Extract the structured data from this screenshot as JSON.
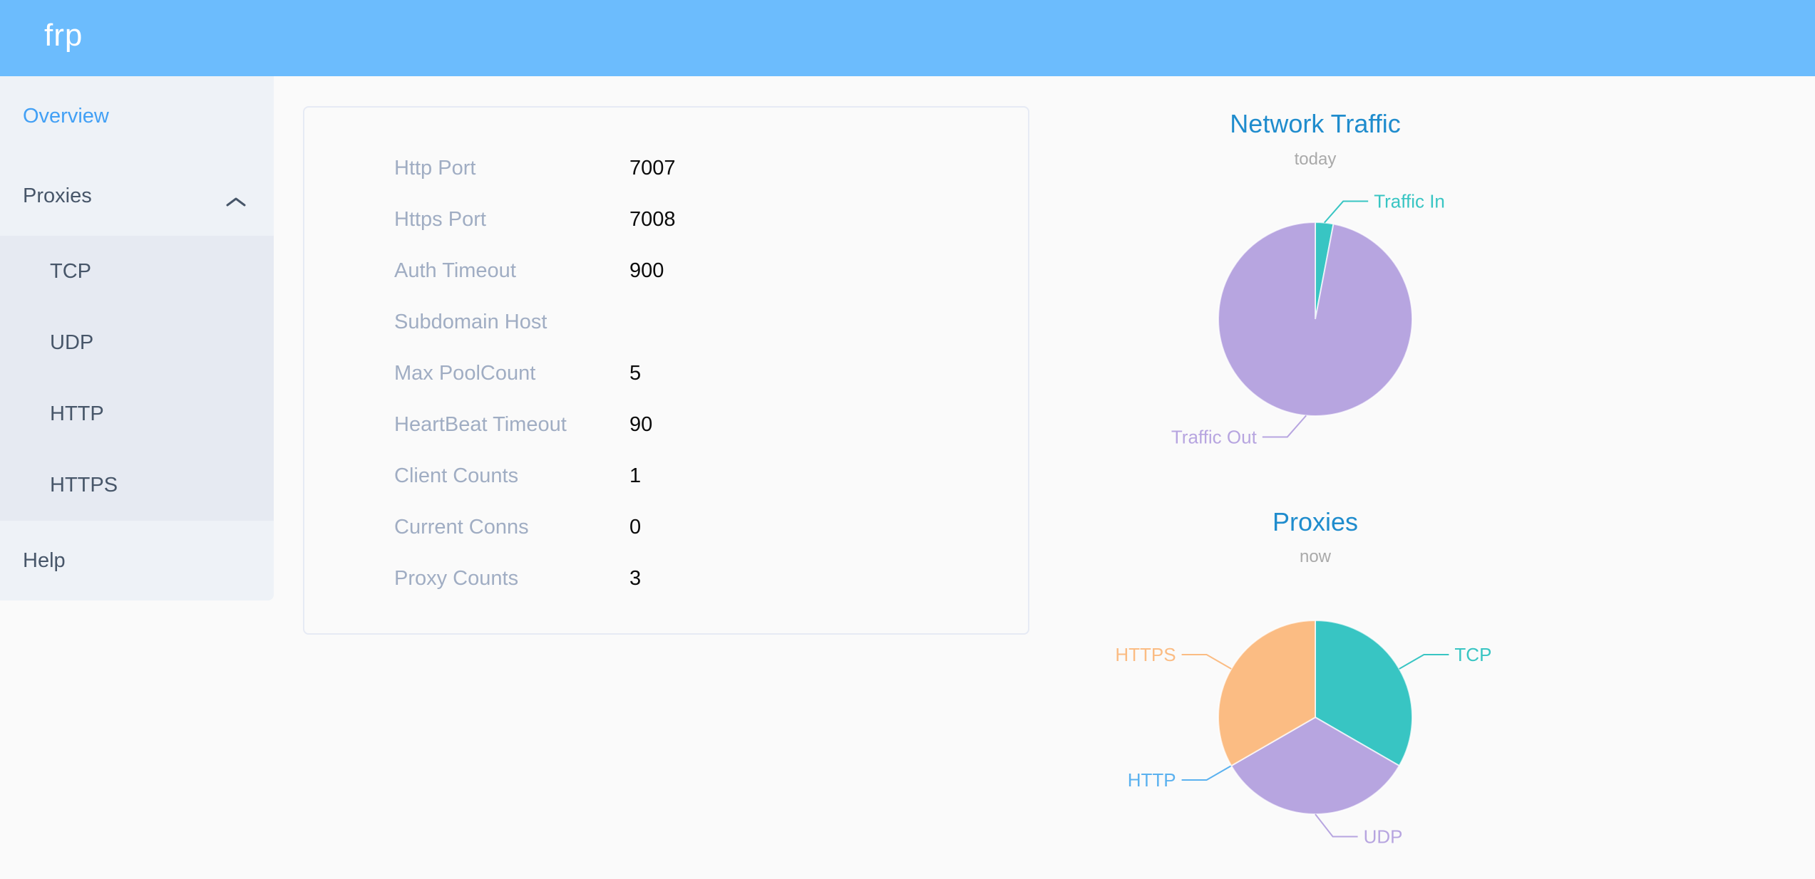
{
  "header": {
    "logo_text": "frp"
  },
  "sidebar": {
    "items": [
      {
        "label": "Overview",
        "active": true
      },
      {
        "label": "Proxies",
        "expanded": true,
        "children": [
          {
            "label": "TCP"
          },
          {
            "label": "UDP"
          },
          {
            "label": "HTTP"
          },
          {
            "label": "HTTPS"
          }
        ]
      },
      {
        "label": "Help"
      }
    ]
  },
  "server_info": {
    "rows": [
      {
        "label": "Http Port",
        "value": "7007"
      },
      {
        "label": "Https Port",
        "value": "7008"
      },
      {
        "label": "Auth Timeout",
        "value": "900"
      },
      {
        "label": "Subdomain Host",
        "value": ""
      },
      {
        "label": "Max PoolCount",
        "value": "5"
      },
      {
        "label": "HeartBeat Timeout",
        "value": "90"
      },
      {
        "label": "Client Counts",
        "value": "1"
      },
      {
        "label": "Current Conns",
        "value": "0"
      },
      {
        "label": "Proxy Counts",
        "value": "3"
      }
    ]
  },
  "colors": {
    "header_bg": "#6cbcfd",
    "sidebar_bg": "#eef2f7",
    "submenu_bg": "#e6eaf2",
    "menu_text": "#475669",
    "active_menu_blue": "#42a0f5",
    "chart_title_blue": "#1f8ccd",
    "label_gray": "#a0adc3",
    "teal": "#38c5c3",
    "purple": "#b7a5e0",
    "blue": "#5ab1ef",
    "orange": "#fbbc83"
  },
  "chart_data": [
    {
      "type": "pie",
      "title": "Network Traffic",
      "subtitle": "today",
      "labels": [
        "Traffic In",
        "Traffic Out"
      ],
      "values": [
        3,
        97
      ],
      "values_estimated": true,
      "colors": [
        "#38c5c3",
        "#b7a5e0"
      ],
      "legend_position": "callout-labels",
      "start_angle_deg": 0,
      "clockwise": true
    },
    {
      "type": "pie",
      "title": "Proxies",
      "subtitle": "now",
      "labels": [
        "TCP",
        "UDP",
        "HTTP",
        "HTTPS"
      ],
      "values": [
        1,
        1,
        0,
        1
      ],
      "colors": [
        "#38c5c3",
        "#b7a5e0",
        "#5ab1ef",
        "#fbbc83"
      ],
      "legend_position": "callout-labels",
      "start_angle_deg": 0,
      "clockwise": true
    }
  ]
}
